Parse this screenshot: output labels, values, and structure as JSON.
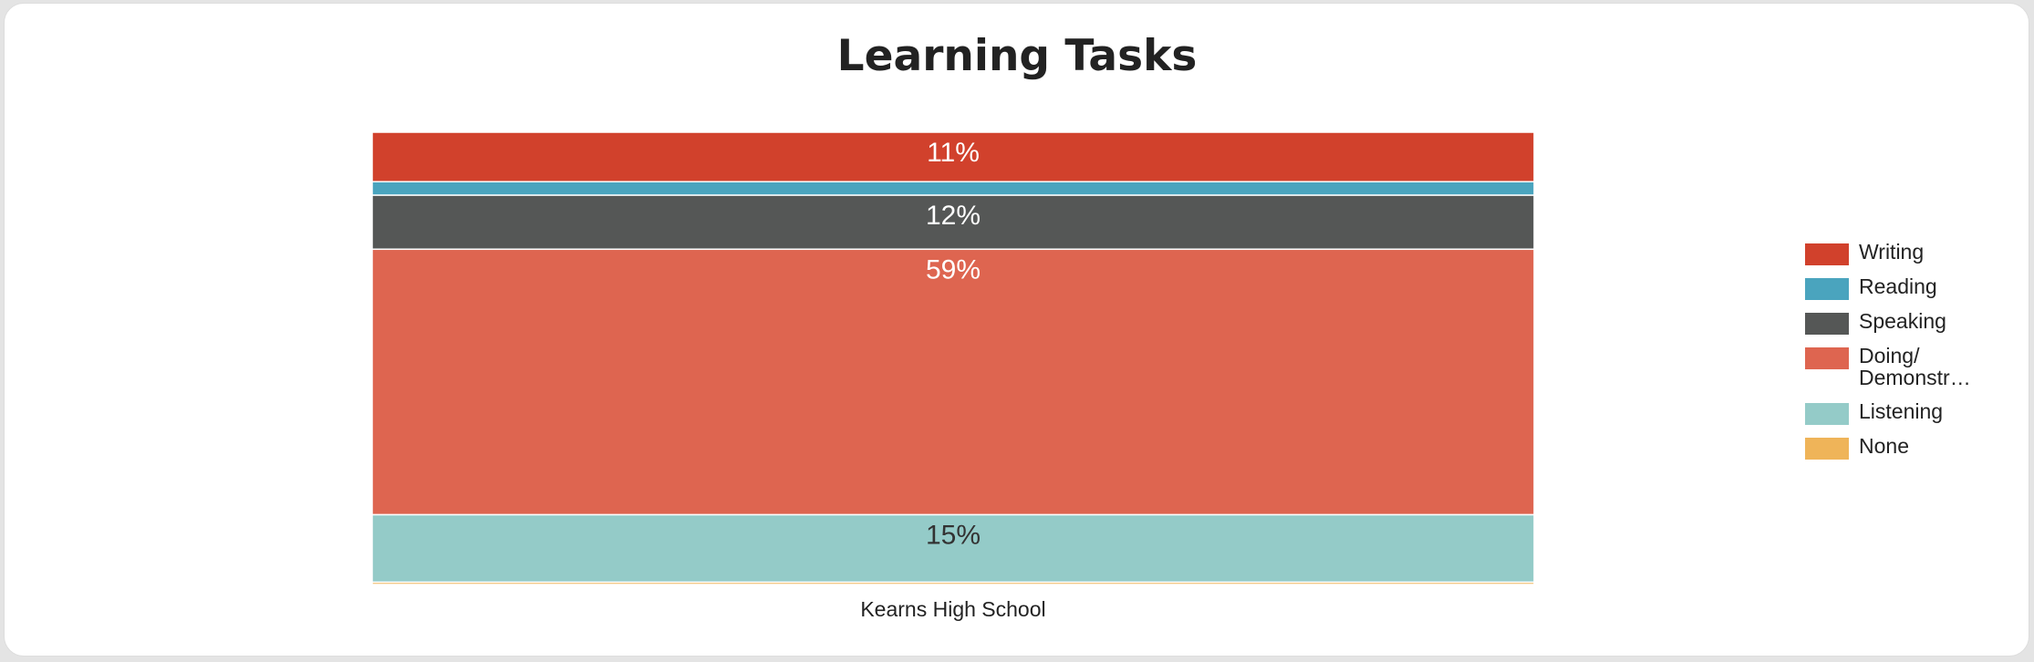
{
  "chart_data": {
    "type": "bar",
    "stacked": true,
    "normalized": true,
    "title": "Learning Tasks",
    "categories": [
      "Kearns High School"
    ],
    "ylim": [
      0,
      100
    ],
    "legend_position": "right",
    "grid": false,
    "series": [
      {
        "name": "Writing",
        "color": "#d1412c",
        "values": [
          11
        ],
        "label": "11%"
      },
      {
        "name": "Reading",
        "color": "#4aa4be",
        "values": [
          3
        ],
        "label": ""
      },
      {
        "name": "Speaking",
        "color": "#555756",
        "values": [
          12
        ],
        "label": "12%"
      },
      {
        "name": "Doing/ Demonstr…",
        "color": "#de6550",
        "values": [
          59
        ],
        "label": "59%"
      },
      {
        "name": "Listening",
        "color": "#94cbc8",
        "values": [
          15
        ],
        "label": "15%"
      },
      {
        "name": "None",
        "color": "#efb459",
        "values": [
          0.5
        ],
        "label": ""
      }
    ]
  }
}
